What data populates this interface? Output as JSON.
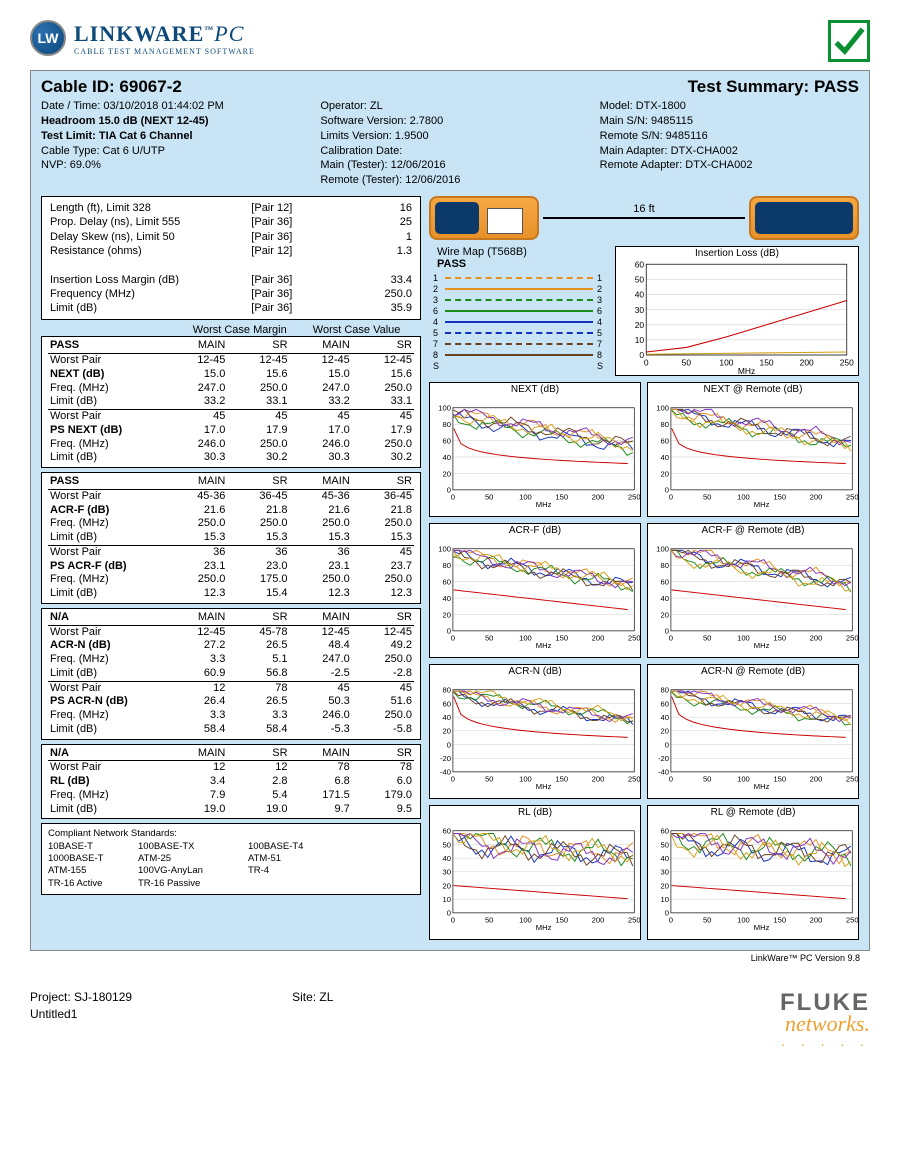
{
  "logo": {
    "badge": "LW",
    "main": "LINKWARE",
    "tm": "™",
    "pc": "PC",
    "sub": "CABLE TEST MANAGEMENT SOFTWARE"
  },
  "header": {
    "cable_id_label": "Cable ID:",
    "cable_id": "69067-2",
    "summary_label": "Test Summary:",
    "summary": "PASS"
  },
  "meta": {
    "c1": {
      "l1": "Date / Time: 03/10/2018  01:44:02 PM",
      "l2": "Headroom 15.0 dB (NEXT 12-45)",
      "l3": "Test Limit: TIA Cat 6 Channel",
      "l4": "Cable Type: Cat 6 U/UTP",
      "l5": "NVP: 69.0%"
    },
    "c2": {
      "l1": "Operator: ZL",
      "l2": "Software Version: 2.7800",
      "l3": "Limits Version: 1.9500",
      "l4": "Calibration Date:",
      "l5": " Main (Tester): 12/06/2016",
      "l6": "Remote (Tester): 12/06/2016"
    },
    "c3": {
      "l1": "Model: DTX-1800",
      "l2": "Main S/N: 9485115",
      "l3": "Remote S/N: 9485116",
      "l4": "Main Adapter: DTX-CHA002",
      "l5": "Remote Adapter: DTX-CHA002"
    }
  },
  "params": [
    [
      "Length (ft), Limit 328",
      "[Pair 12]",
      "16"
    ],
    [
      "Prop. Delay (ns), Limit 555",
      "[Pair 36]",
      "25"
    ],
    [
      "Delay Skew (ns), Limit 50",
      "[Pair 36]",
      "1"
    ],
    [
      "Resistance (ohms)",
      "[Pair 12]",
      "1.3"
    ],
    [
      "",
      "",
      ""
    ],
    [
      "Insertion Loss Margin (dB)",
      "[Pair 36]",
      "33.4"
    ],
    [
      "Frequency (MHz)",
      "[Pair 36]",
      "250.0"
    ],
    [
      "Limit (dB)",
      "[Pair 36]",
      "35.9"
    ]
  ],
  "margin_hdr": {
    "a": "Worst Case Margin",
    "b": "Worst Case Value"
  },
  "cols": [
    "MAIN",
    "SR",
    "MAIN",
    "SR"
  ],
  "blocks": [
    {
      "title": "PASS",
      "rows": [
        [
          "Worst Pair",
          "12-45",
          "12-45",
          "12-45",
          "12-45"
        ],
        [
          "NEXT (dB)",
          "15.0",
          "15.6",
          "15.0",
          "15.6",
          true
        ],
        [
          "Freq. (MHz)",
          "247.0",
          "250.0",
          "247.0",
          "250.0"
        ],
        [
          "Limit (dB)",
          "33.2",
          "33.1",
          "33.2",
          "33.1"
        ]
      ],
      "rows2": [
        [
          "Worst Pair",
          "45",
          "45",
          "45",
          "45"
        ],
        [
          "PS NEXT (dB)",
          "17.0",
          "17.9",
          "17.0",
          "17.9",
          true
        ],
        [
          "Freq. (MHz)",
          "246.0",
          "250.0",
          "246.0",
          "250.0"
        ],
        [
          "Limit (dB)",
          "30.3",
          "30.2",
          "30.3",
          "30.2"
        ]
      ]
    },
    {
      "title": "PASS",
      "rows": [
        [
          "Worst Pair",
          "45-36",
          "36-45",
          "45-36",
          "36-45"
        ],
        [
          "ACR-F (dB)",
          "21.6",
          "21.8",
          "21.6",
          "21.8",
          true
        ],
        [
          "Freq. (MHz)",
          "250.0",
          "250.0",
          "250.0",
          "250.0"
        ],
        [
          "Limit (dB)",
          "15.3",
          "15.3",
          "15.3",
          "15.3"
        ]
      ],
      "rows2": [
        [
          "Worst Pair",
          "36",
          "36",
          "36",
          "45"
        ],
        [
          "PS ACR-F (dB)",
          "23.1",
          "23.0",
          "23.1",
          "23.7",
          true
        ],
        [
          "Freq. (MHz)",
          "250.0",
          "175.0",
          "250.0",
          "250.0"
        ],
        [
          "Limit (dB)",
          "12.3",
          "15.4",
          "12.3",
          "12.3"
        ]
      ]
    },
    {
      "title": "N/A",
      "rows": [
        [
          "Worst Pair",
          "12-45",
          "45-78",
          "12-45",
          "12-45"
        ],
        [
          "ACR-N (dB)",
          "27.2",
          "26.5",
          "48.4",
          "49.2",
          true
        ],
        [
          "Freq. (MHz)",
          "3.3",
          "5.1",
          "247.0",
          "250.0"
        ],
        [
          "Limit (dB)",
          "60.9",
          "56.8",
          "-2.5",
          "-2.8"
        ]
      ],
      "rows2": [
        [
          "Worst Pair",
          "12",
          "78",
          "45",
          "45"
        ],
        [
          "PS ACR-N (dB)",
          "26.4",
          "26.5",
          "50.3",
          "51.6",
          true
        ],
        [
          "Freq. (MHz)",
          "3.3",
          "3.3",
          "246.0",
          "250.0"
        ],
        [
          "Limit (dB)",
          "58.4",
          "58.4",
          "-5.3",
          "-5.8"
        ]
      ]
    },
    {
      "title": "N/A",
      "rows": [
        [
          "Worst Pair",
          "12",
          "12",
          "78",
          "78"
        ],
        [
          "RL (dB)",
          "3.4",
          "2.8",
          "6.8",
          "6.0",
          true
        ],
        [
          "Freq. (MHz)",
          "7.9",
          "5.4",
          "171.5",
          "179.0"
        ],
        [
          "Limit (dB)",
          "19.0",
          "19.0",
          "9.7",
          "9.5"
        ]
      ]
    }
  ],
  "standards": {
    "title": "Compliant Network Standards:",
    "items": [
      "10BASE-T",
      "100BASE-TX",
      "100BASE-T4",
      "1000BASE-T",
      "ATM-25",
      "ATM-51",
      "ATM-155",
      "100VG-AnyLan",
      "TR-4",
      "TR-16 Active",
      "TR-16 Passive",
      ""
    ]
  },
  "conn_len": "16 ft",
  "wiremap": {
    "title": "Wire Map (T568B)",
    "pass": "PASS",
    "wires": [
      {
        "n": "1",
        "style": "dashed",
        "color": "#e59020"
      },
      {
        "n": "2",
        "style": "solid",
        "color": "#e59020"
      },
      {
        "n": "3",
        "style": "dashed",
        "color": "#1a8a1a"
      },
      {
        "n": "6",
        "style": "solid",
        "color": "#1a8a1a"
      },
      {
        "n": "4",
        "style": "solid",
        "color": "#1030c0"
      },
      {
        "n": "5",
        "style": "dashed",
        "color": "#1030c0"
      },
      {
        "n": "7",
        "style": "dashed",
        "color": "#6b4020"
      },
      {
        "n": "8",
        "style": "solid",
        "color": "#6b4020"
      }
    ],
    "shield": "S"
  },
  "charts": {
    "il": {
      "title": "Insertion Loss (dB)",
      "ylim": [
        0,
        60
      ],
      "xlim": [
        0,
        250
      ],
      "ytick": 10,
      "xtick": 50,
      "lines": [
        {
          "c": "#cc0000",
          "pts": [
            [
              0,
              2
            ],
            [
              50,
              5
            ],
            [
              100,
              12
            ],
            [
              150,
              20
            ],
            [
              200,
              28
            ],
            [
              250,
              36
            ]
          ]
        },
        {
          "c": "#d4a017",
          "pts": [
            [
              0,
              0.5
            ],
            [
              250,
              2
            ]
          ]
        }
      ]
    },
    "grid_defs": [
      {
        "title": "NEXT (dB)",
        "ylim": [
          0,
          100
        ],
        "remote": "NEXT @ Remote (dB)"
      },
      {
        "title": "ACR-F (dB)",
        "ylim": [
          0,
          100
        ],
        "remote": "ACR-F @ Remote (dB)"
      },
      {
        "title": "ACR-N (dB)",
        "ylim": [
          -40,
          80
        ],
        "remote": "ACR-N @ Remote (dB)"
      },
      {
        "title": "RL (dB)",
        "ylim": [
          0,
          60
        ],
        "remote": "RL @ Remote (dB)"
      }
    ],
    "xlim": [
      0,
      250
    ],
    "xtick": 50,
    "xlabel": "MHz",
    "trace_colors": [
      "#1030c0",
      "#e59020",
      "#1a8a1a",
      "#6b4020",
      "#8030c0",
      "#d4a017"
    ],
    "limit_color": "#cc0000"
  },
  "footer": {
    "version": "LinkWare™ PC Version 9.8",
    "project": "Project: SJ-180129",
    "site": "Site: ZL",
    "untitled": "Untitled1",
    "fluke1": "FLUKE",
    "fluke2": "networks",
    "dots": ". . . . ."
  }
}
